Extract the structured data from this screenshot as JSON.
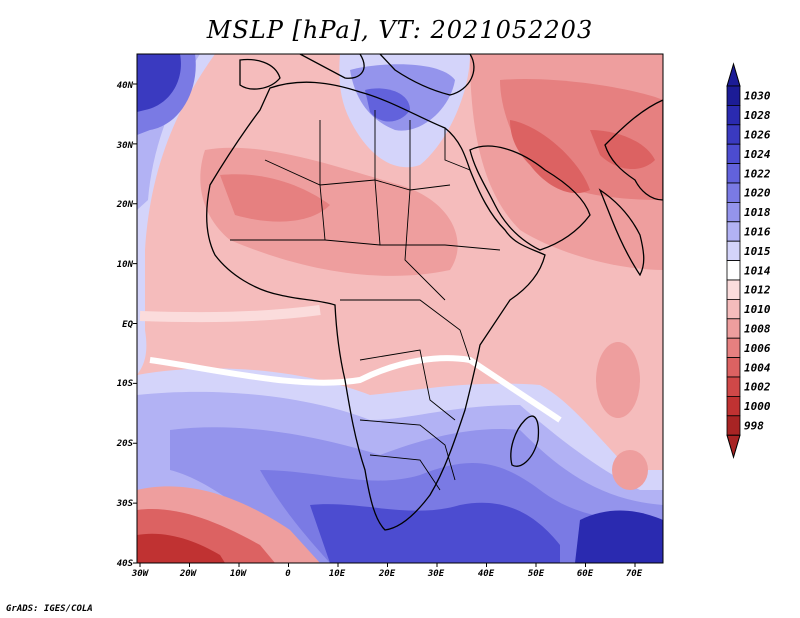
{
  "title": "MSLP [hPa], VT: 2021052203",
  "credit": "GrADS: IGES/COLA",
  "lat_labels": [
    "40N",
    "30N",
    "20N",
    "10N",
    "EQ",
    "10S",
    "20S",
    "30S",
    "40S"
  ],
  "lon_labels": [
    "30W",
    "20W",
    "10W",
    "0",
    "10E",
    "20E",
    "30E",
    "40E",
    "50E",
    "60E",
    "70E"
  ],
  "colorbar": {
    "levels": [
      {
        "label": "1030",
        "color": "#1c1c96"
      },
      {
        "label": "1028",
        "color": "#2a2ab0"
      },
      {
        "label": "1026",
        "color": "#3a3ac0"
      },
      {
        "label": "1024",
        "color": "#4c4cd0"
      },
      {
        "label": "1022",
        "color": "#6262dc"
      },
      {
        "label": "1020",
        "color": "#7a7ae4"
      },
      {
        "label": "1018",
        "color": "#9494ec"
      },
      {
        "label": "1016",
        "color": "#b2b2f4"
      },
      {
        "label": "1015",
        "color": "#d4d4fa"
      },
      {
        "label": "1014",
        "color": "#ffffff"
      },
      {
        "label": "1012",
        "color": "#fbdcdc"
      },
      {
        "label": "1010",
        "color": "#f5bcbc"
      },
      {
        "label": "1008",
        "color": "#ee9e9e"
      },
      {
        "label": "1006",
        "color": "#e68080"
      },
      {
        "label": "1004",
        "color": "#dc6262"
      },
      {
        "label": "1002",
        "color": "#d04848"
      },
      {
        "label": "1000",
        "color": "#c03232"
      },
      {
        "label": "998",
        "color": "#a82424"
      }
    ]
  }
}
